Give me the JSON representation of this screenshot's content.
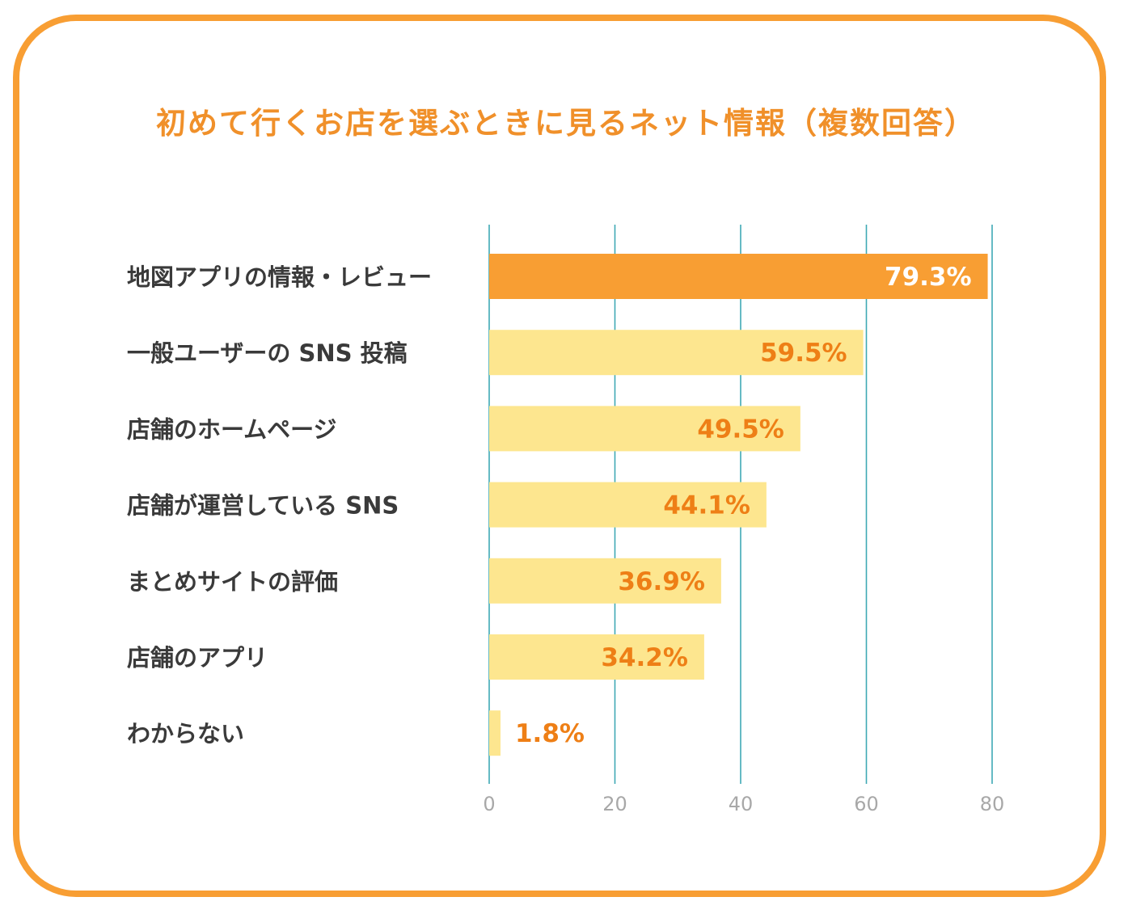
{
  "chart_data": {
    "type": "bar",
    "orientation": "horizontal",
    "title": "初めて行くお店を選ぶときに見るネット情報（複数回答）",
    "categories": [
      "地図アプリの情報・レビュー",
      "一般ユーザーの SNS 投稿",
      "店舗のホームページ",
      "店舗が運営している SNS",
      "まとめサイトの評価",
      "店舗のアプリ",
      "わからない"
    ],
    "values": [
      79.3,
      59.5,
      49.5,
      44.1,
      36.9,
      34.2,
      1.8
    ],
    "value_labels": [
      "79.3%",
      "59.5%",
      "49.5%",
      "44.1%",
      "36.9%",
      "34.2%",
      "1.8%"
    ],
    "xlim": [
      0,
      80
    ],
    "x_ticks": [
      0,
      20,
      40,
      60,
      80
    ],
    "x_tick_labels": [
      "0",
      "20",
      "40",
      "60",
      "80"
    ],
    "grid": true,
    "xlabel": "",
    "ylabel": "",
    "colors": {
      "highlight_bar": "#f89e33",
      "bar": "#fde68f",
      "highlight_label": "#ffffff",
      "label": "#ee7f16",
      "gridline": "#3fa9b5",
      "frame": "#f89e33",
      "title": "#f0902a"
    }
  }
}
